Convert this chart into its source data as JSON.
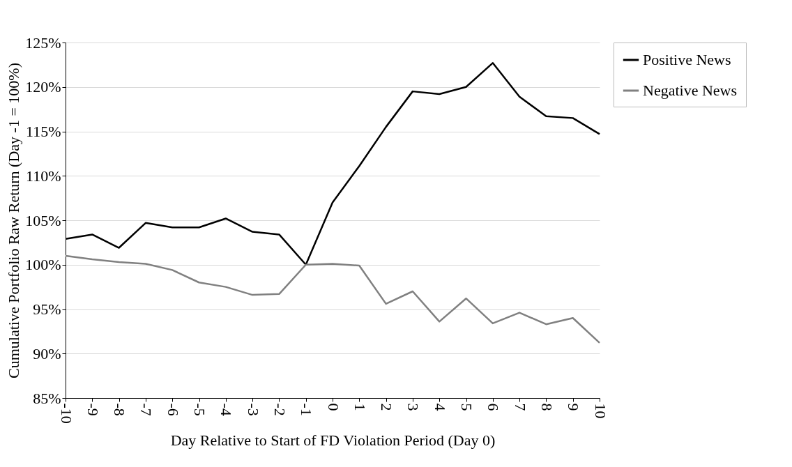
{
  "chart_data": {
    "type": "line",
    "xlabel": "Day Relative to Start of FD Violation Period (Day 0)",
    "ylabel": "Cumulative Portfolio Raw Return (Day -1 = 100%)",
    "x": [
      -10,
      -9,
      -8,
      -7,
      -6,
      -5,
      -4,
      -3,
      -2,
      -1,
      0,
      1,
      2,
      3,
      4,
      5,
      6,
      7,
      8,
      9,
      10
    ],
    "series": [
      {
        "name": "Positive News",
        "color": "#000000",
        "values": [
          102.9,
          103.4,
          101.9,
          104.7,
          104.2,
          104.2,
          105.2,
          103.7,
          103.4,
          100,
          107.0,
          111.1,
          115.5,
          119.5,
          119.2,
          120.0,
          122.7,
          118.9,
          116.7,
          116.5,
          114.7
        ]
      },
      {
        "name": "Negative News",
        "color": "#808080",
        "values": [
          101.0,
          100.6,
          100.3,
          100.1,
          99.4,
          98.0,
          97.5,
          96.6,
          96.7,
          100,
          100.1,
          99.9,
          95.6,
          97.0,
          93.6,
          96.2,
          93.4,
          94.6,
          93.3,
          94.0,
          91.2
        ]
      }
    ],
    "xlim": [
      -10,
      10
    ],
    "xticks": [
      -10,
      -9,
      -8,
      -7,
      -6,
      -5,
      -4,
      -3,
      -2,
      -1,
      0,
      1,
      2,
      3,
      4,
      5,
      6,
      7,
      8,
      9,
      10
    ],
    "ylim": [
      85,
      125
    ],
    "yticks": [
      {
        "value": 85,
        "label": "85%"
      },
      {
        "value": 90,
        "label": "90%"
      },
      {
        "value": 95,
        "label": "95%"
      },
      {
        "value": 100,
        "label": "100%"
      },
      {
        "value": 105,
        "label": "105%"
      },
      {
        "value": 110,
        "label": "110%"
      },
      {
        "value": 115,
        "label": "115%"
      },
      {
        "value": 120,
        "label": "120%"
      },
      {
        "value": 125,
        "label": "125%"
      }
    ],
    "grid": "y",
    "legend": "right",
    "marker": "none",
    "line_style": "solid"
  }
}
